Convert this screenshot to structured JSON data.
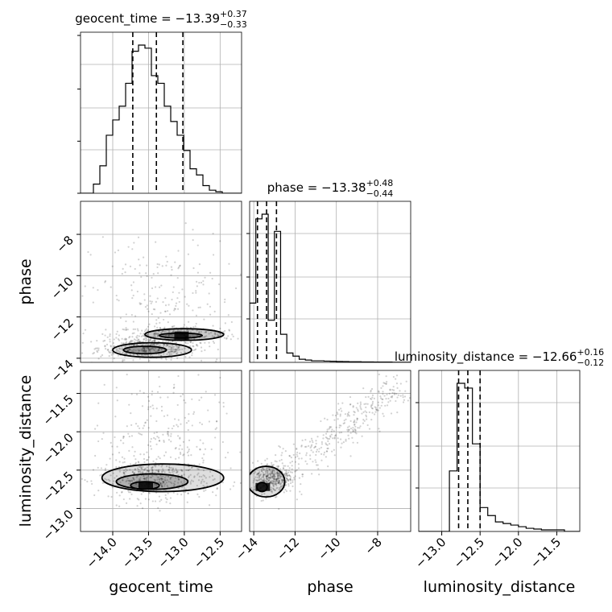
{
  "chart_data": {
    "type": "corner",
    "parameters": [
      "geocent_time",
      "phase",
      "luminosity_distance"
    ],
    "grid": true,
    "color": "#000000",
    "ranges": {
      "geocent_time": [
        -14.45,
        -12.2
      ],
      "phase": [
        -14.2,
        -6.4
      ],
      "luminosity_distance": [
        -13.3,
        -11.2
      ]
    },
    "ticks": {
      "geocent_time": {
        "values": [
          -14.0,
          -13.5,
          -13.0,
          -12.5
        ],
        "labels": [
          "−14.0",
          "−13.5",
          "−13.0",
          "−12.5"
        ]
      },
      "phase": {
        "values": [
          -14,
          -12,
          -10,
          -8
        ],
        "labels": [
          "−14",
          "−12",
          "−10",
          "−8"
        ]
      },
      "luminosity_distance": {
        "values": [
          -13.0,
          -12.5,
          -12.0,
          -11.5
        ],
        "labels": [
          "−13.0",
          "−12.5",
          "−12.0",
          "−11.5"
        ]
      }
    },
    "axis_labels": {
      "x": [
        "geocent_time",
        "phase",
        "luminosity_distance"
      ],
      "y_phase": "phase",
      "y_luminosity_distance": "luminosity_distance"
    },
    "titles": [
      {
        "param": "geocent_time",
        "prefix": "geocent_time = −13.39",
        "plus": "+0.37",
        "minus": "−0.33"
      },
      {
        "param": "phase",
        "prefix": "phase = −13.38",
        "plus": "+0.48",
        "minus": "−0.44"
      },
      {
        "param": "luminosity_distance",
        "prefix": "luminosity_distance = −12.66",
        "plus": "+0.16",
        "minus": "−0.12"
      }
    ],
    "quantiles": {
      "geocent_time": [
        -13.72,
        -13.39,
        -13.02
      ],
      "phase": [
        -13.82,
        -13.38,
        -12.9
      ],
      "luminosity_distance": [
        -12.78,
        -12.66,
        -12.5
      ]
    },
    "histograms": {
      "geocent_time": {
        "bins": [
          -14.45,
          -14.36,
          -14.27,
          -14.18,
          -14.09,
          -14.0,
          -13.91,
          -13.82,
          -13.73,
          -13.64,
          -13.55,
          -13.46,
          -13.37,
          -13.28,
          -13.19,
          -13.1,
          -13.01,
          -12.92,
          -12.83,
          -12.74,
          -12.65,
          -12.56,
          -12.47,
          -12.38,
          -12.29,
          -12.2
        ],
        "counts": [
          0,
          0,
          0.06,
          0.18,
          0.38,
          0.48,
          0.57,
          0.72,
          0.93,
          0.97,
          0.95,
          0.77,
          0.72,
          0.57,
          0.47,
          0.38,
          0.28,
          0.16,
          0.12,
          0.05,
          0.02,
          0.01,
          0,
          0,
          0
        ]
      },
      "phase": {
        "bins": [
          -14.2,
          -13.9,
          -13.6,
          -13.3,
          -13.0,
          -12.7,
          -12.4,
          -12.1,
          -11.8,
          -11.5,
          -11.2,
          -10.9,
          -10.6,
          -10.3,
          -10.0,
          -9.7,
          -9.4,
          -9.1,
          -8.8,
          -8.5,
          -8.2,
          -7.9,
          -7.6,
          -7.3,
          -7.0,
          -6.7,
          -6.4
        ],
        "counts": [
          0.38,
          0.92,
          0.95,
          0.27,
          0.84,
          0.18,
          0.06,
          0.04,
          0.02,
          0.015,
          0.01,
          0.01,
          0.008,
          0.007,
          0.006,
          0.005,
          0.004,
          0.004,
          0.003,
          0.003,
          0.002,
          0.002,
          0.002,
          0.001,
          0.001,
          0.001
        ]
      },
      "luminosity_distance": {
        "bins": [
          -13.3,
          -13.2,
          -13.1,
          -13.0,
          -12.9,
          -12.8,
          -12.7,
          -12.6,
          -12.5,
          -12.4,
          -12.3,
          -12.2,
          -12.1,
          -12.0,
          -11.9,
          -11.8,
          -11.7,
          -11.6,
          -11.5,
          -11.4,
          -11.3,
          -11.2
        ],
        "counts": [
          0,
          0,
          0,
          0,
          0.38,
          0.93,
          0.9,
          0.55,
          0.15,
          0.1,
          0.06,
          0.05,
          0.04,
          0.03,
          0.02,
          0.015,
          0.01,
          0.01,
          0.01,
          0,
          0
        ]
      }
    },
    "scatter_clusters": {
      "phase_vs_geocent_time": [
        {
          "cx": -13.5,
          "cy": -13.5,
          "sx": 0.35,
          "sy": 0.28,
          "n": 450
        },
        {
          "cx": -13.1,
          "cy": -12.85,
          "sx": 0.45,
          "sy": 0.22,
          "n": 250
        },
        {
          "cx": -13.3,
          "cy": -11.2,
          "sx": 0.5,
          "sy": 1.6,
          "n": 220
        }
      ],
      "luminosity_distance_vs_geocent_time": [
        {
          "cx": -13.4,
          "cy": -12.62,
          "sx": 0.4,
          "sy": 0.12,
          "n": 450
        },
        {
          "cx": -13.4,
          "cy": -12.1,
          "sx": 0.45,
          "sy": 0.4,
          "n": 260
        }
      ],
      "luminosity_distance_vs_phase": [
        {
          "cx": -13.1,
          "cy": -12.6,
          "sx": 0.5,
          "sy": 0.1,
          "n": 350
        },
        {
          "cx": -12.6,
          "cy": -12.2,
          "sx": 0.4,
          "sy": 0.3,
          "n": 200
        },
        {
          "cx": -10.0,
          "cy": -11.8,
          "sx": 1.6,
          "sy": 0.2,
          "n": 200
        }
      ]
    },
    "contours": {
      "phase_vs_geocent_time": [
        {
          "cx": -13.45,
          "cy": -13.6,
          "rx": 0.55,
          "ry": 0.35
        },
        {
          "cx": -13.0,
          "cy": -12.85,
          "rx": 0.55,
          "ry": 0.28
        },
        {
          "cx": -13.55,
          "cy": -13.6,
          "rx": 0.3,
          "ry": 0.18
        },
        {
          "cx": -13.05,
          "cy": -12.9,
          "rx": 0.3,
          "ry": 0.12
        }
      ],
      "luminosity_distance_vs_geocent_time": [
        {
          "cx": -13.3,
          "cy": -12.6,
          "rx": 0.85,
          "ry": 0.18
        },
        {
          "cx": -13.45,
          "cy": -12.65,
          "rx": 0.5,
          "ry": 0.1
        },
        {
          "cx": -13.55,
          "cy": -12.7,
          "rx": 0.2,
          "ry": 0.05
        }
      ],
      "luminosity_distance_vs_phase": [
        {
          "cx": -13.4,
          "cy": -12.65,
          "rx": 0.9,
          "ry": 0.2
        },
        {
          "cx": -13.6,
          "cy": -12.72,
          "rx": 0.25,
          "ry": 0.06
        }
      ]
    }
  }
}
